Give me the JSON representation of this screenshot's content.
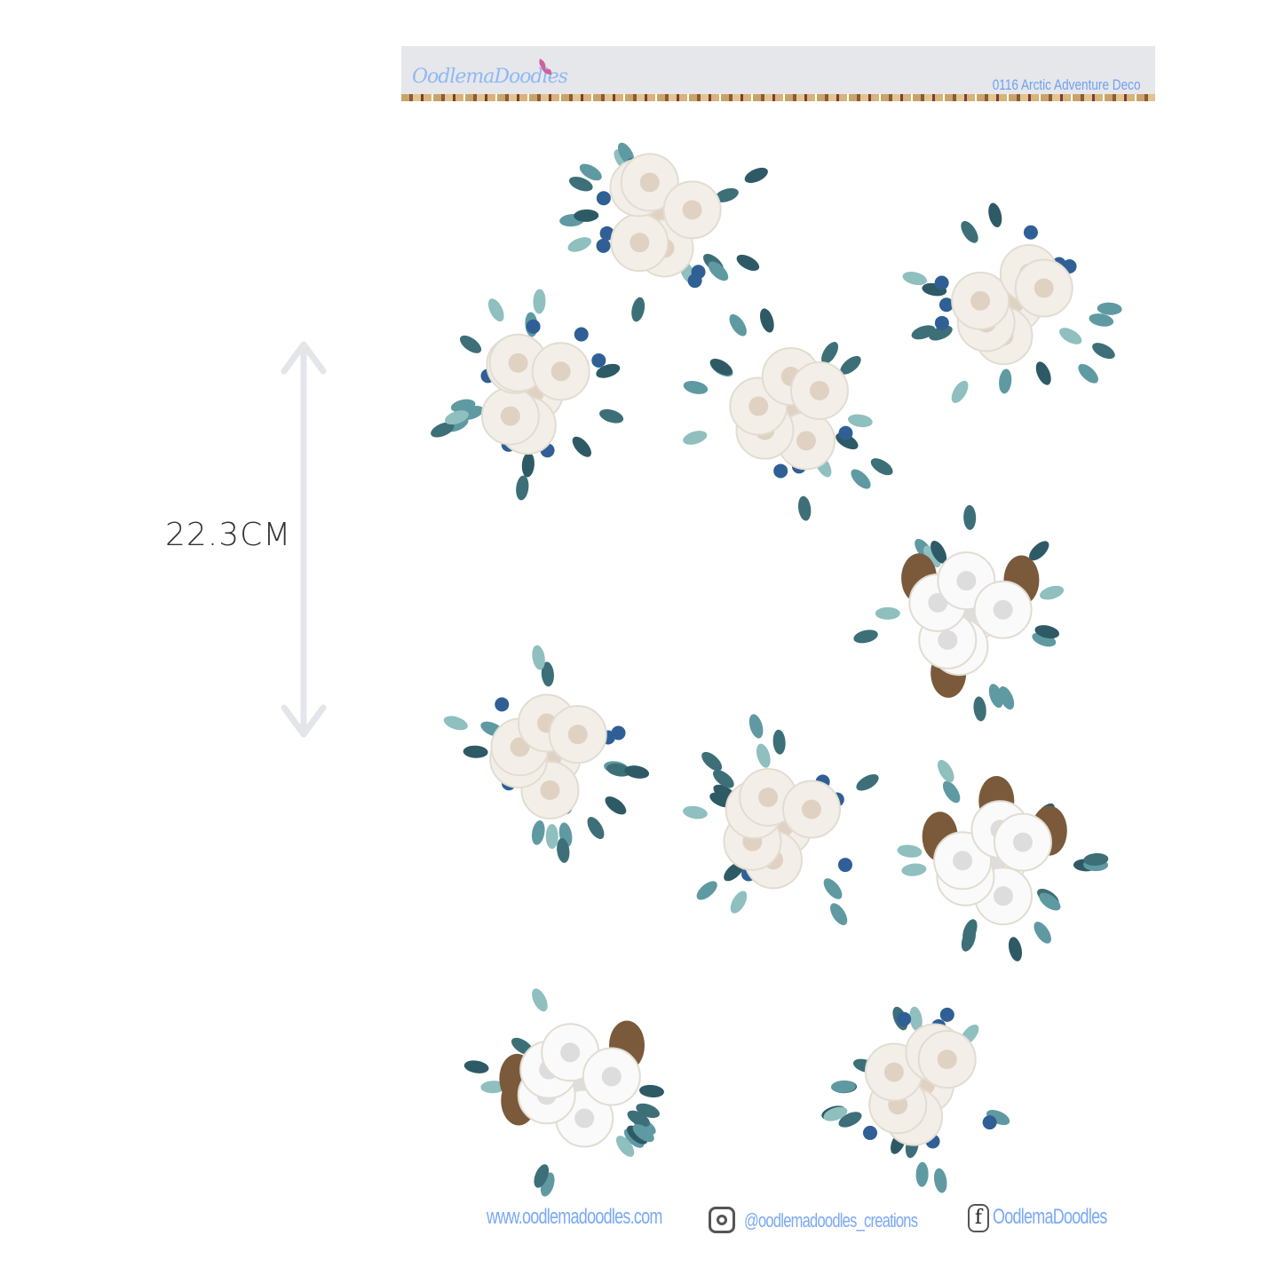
{
  "header": {
    "brand": "OodlemaDoodles",
    "title": "0116 Arctic Adventure Deco"
  },
  "measurement": {
    "label": "22.3CM"
  },
  "footer": {
    "website": "www.oodlemadoodles.com",
    "instagram": "@oodlemadoodles_creations",
    "facebook": "OodlemaDoodles",
    "facebook_glyph": "f"
  },
  "icons": {
    "instagram": "instagram-icon",
    "facebook": "facebook-icon",
    "butterfly": "butterfly-icon",
    "arrow": "double-arrow-icon"
  },
  "colors": {
    "header_bg": "#e6e7ea",
    "brand_text": "#8fb8f5",
    "title_text": "#6fa0f2",
    "leaf": "#5f9aa3",
    "berry": "#2f5f95",
    "rose": "#f3efe8",
    "measure": "#e3e5ea"
  }
}
